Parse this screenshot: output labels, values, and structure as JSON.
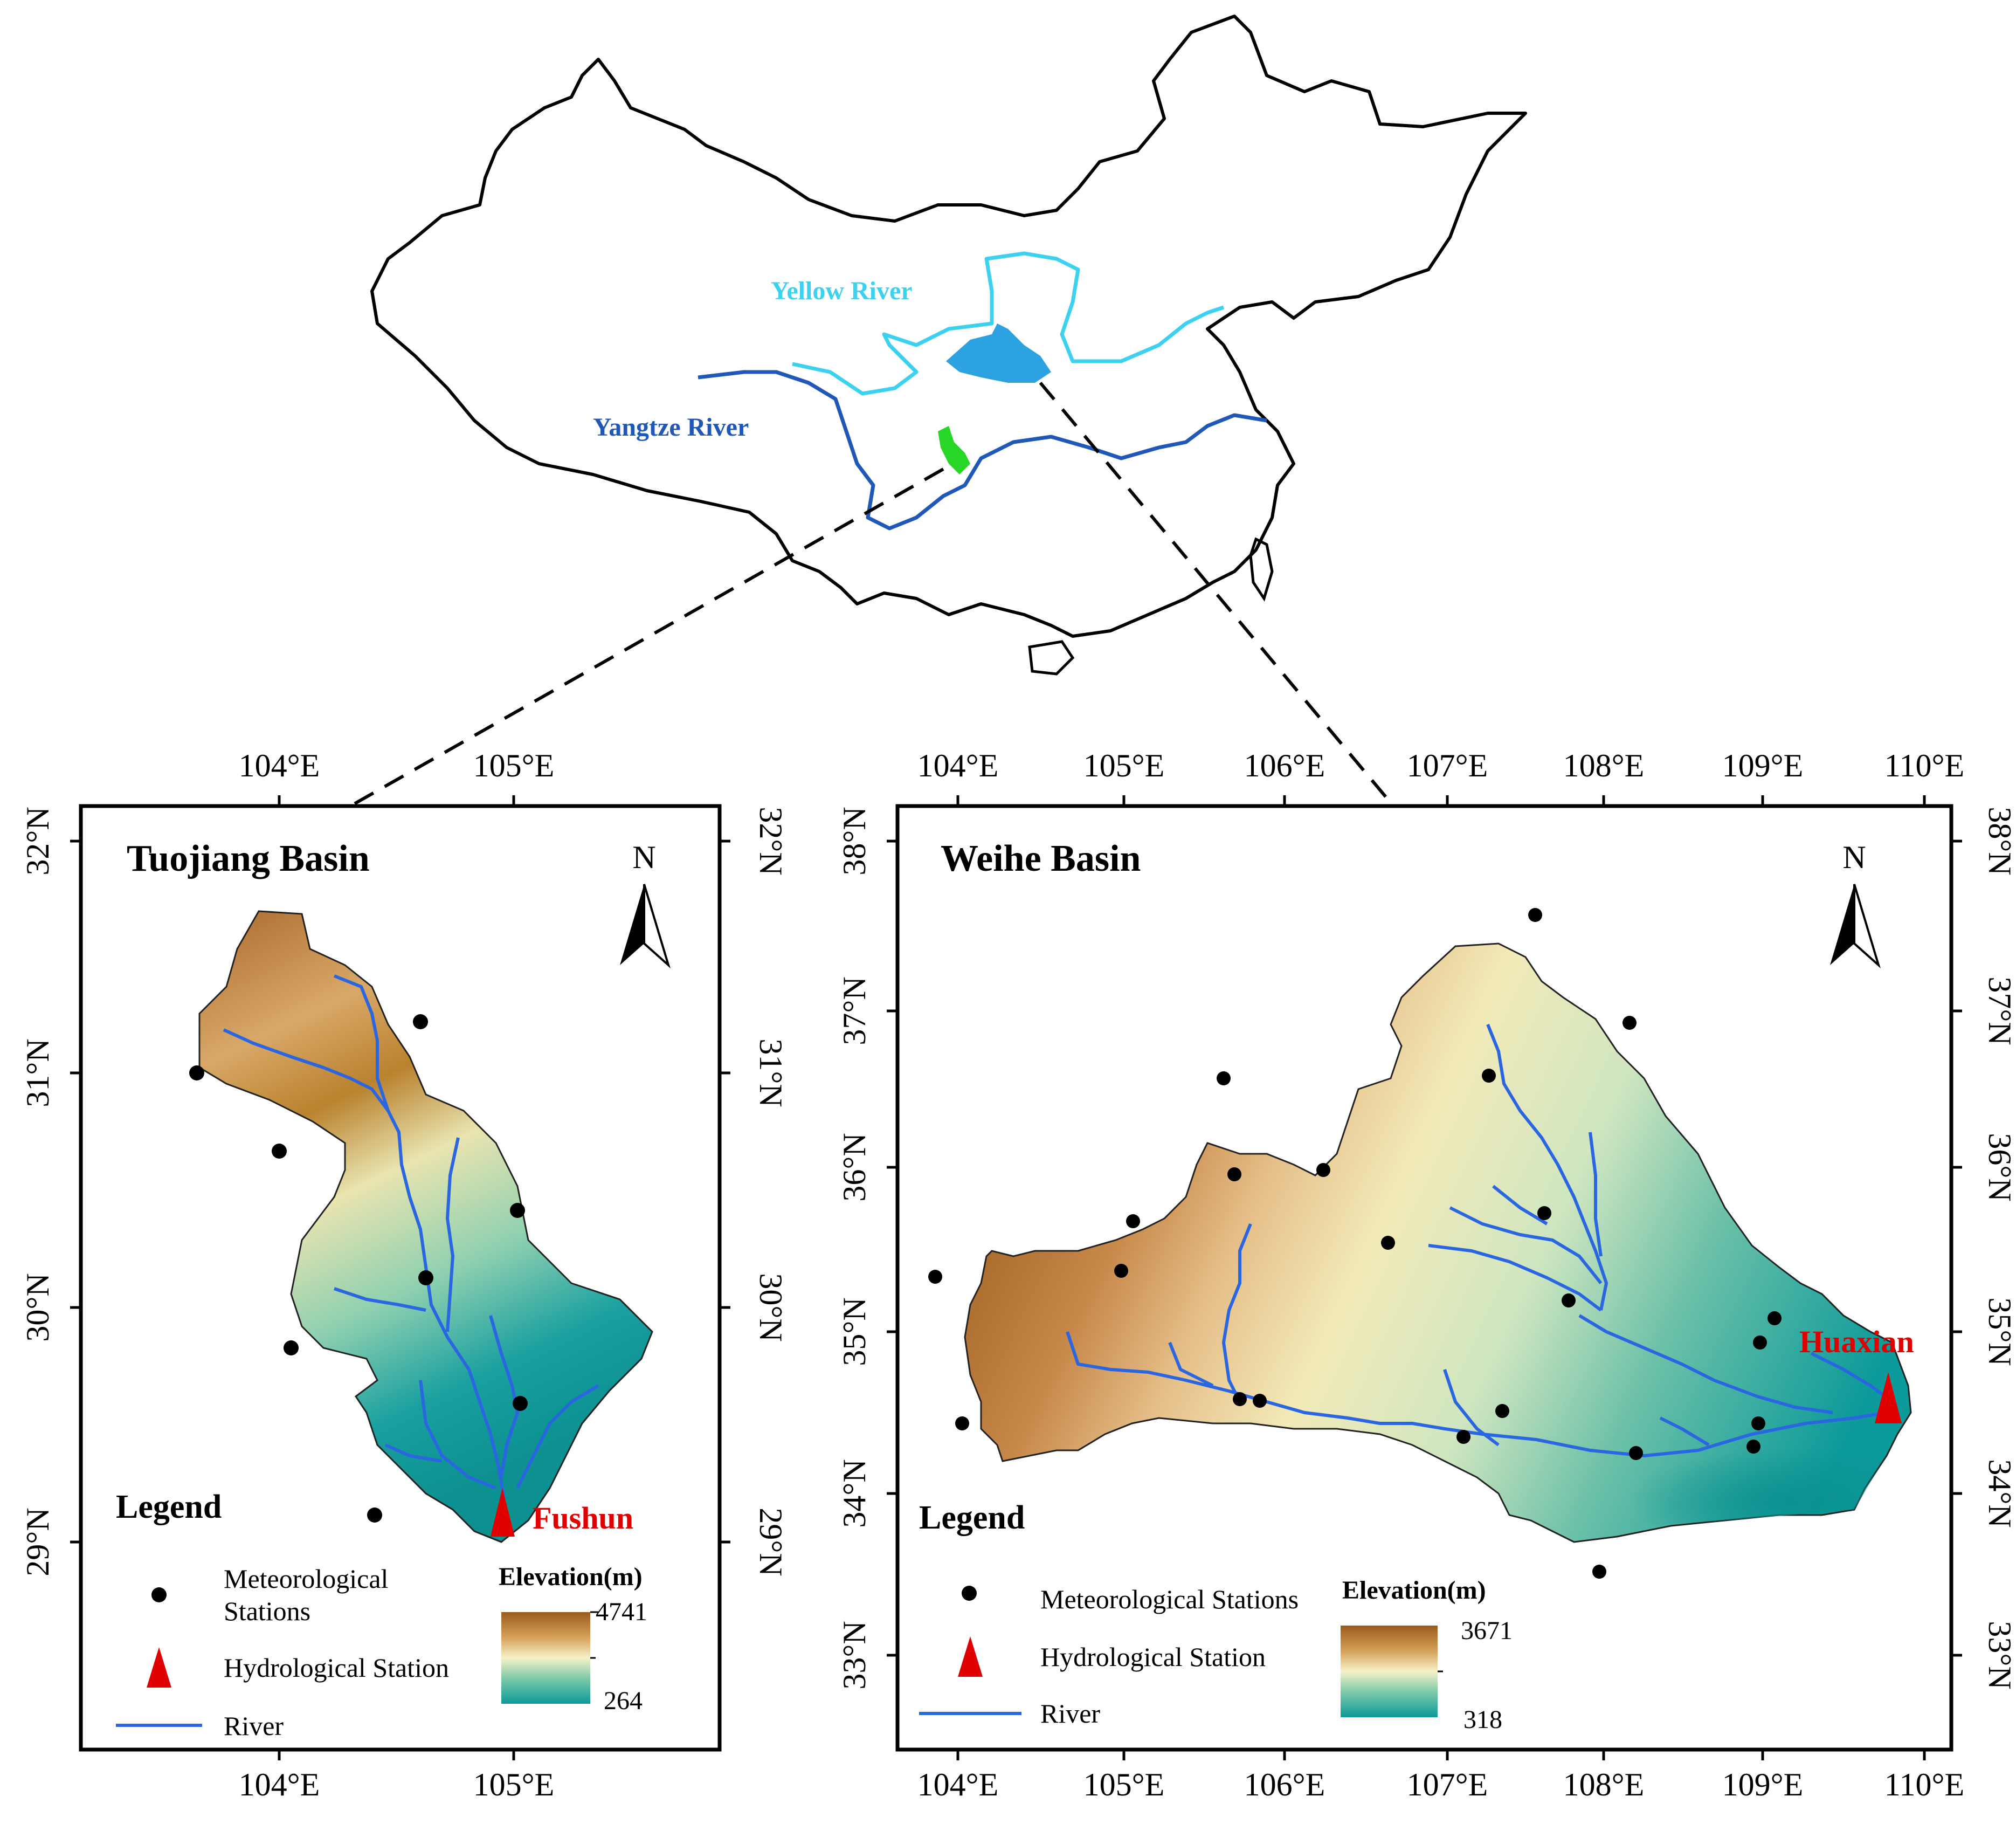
{
  "overview": {
    "yellow_river_label": "Yellow River",
    "yangtze_river_label": "Yangtze River",
    "colors": {
      "yellow_river": "#3dd1f0",
      "yangtze_river": "#1f58b8",
      "weihe_fill": "#2ca2e0",
      "tuojiang_fill": "#28d628"
    }
  },
  "tuojiang": {
    "title": "Tuojiang Basin",
    "north": "N",
    "lon_ticks": [
      "104°E",
      "105°E"
    ],
    "lat_ticks": [
      "32°N",
      "31°N",
      "30°N",
      "29°N"
    ],
    "hydro_station": "Fushun",
    "legend": {
      "title": "Legend",
      "met_line1": "Meteorological",
      "met_line2": "Stations",
      "hydro": "Hydrological Station",
      "river": "River",
      "elev_title": "Elevation(m)",
      "elev_max": "4741",
      "elev_min": "264"
    }
  },
  "weihe": {
    "title": "Weihe Basin",
    "north": "N",
    "lon_ticks": [
      "104°E",
      "105°E",
      "106°E",
      "107°E",
      "108°E",
      "109°E",
      "110°E"
    ],
    "lat_ticks": [
      "38°N",
      "37°N",
      "36°N",
      "35°N",
      "34°N",
      "33°N"
    ],
    "hydro_station": "Huaxian",
    "legend": {
      "title": "Legend",
      "met": "Meteorological Stations",
      "hydro": "Hydrological Station",
      "river": "River",
      "elev_title": "Elevation(m)",
      "elev_max": "3671",
      "elev_min": "318"
    }
  },
  "colors": {
    "elev_high": "#9a5a1c",
    "elev_mid": "#f5f2c8",
    "elev_low": "#0c9a9a",
    "river": "#2a66e0",
    "station_marker": "#e00000"
  }
}
